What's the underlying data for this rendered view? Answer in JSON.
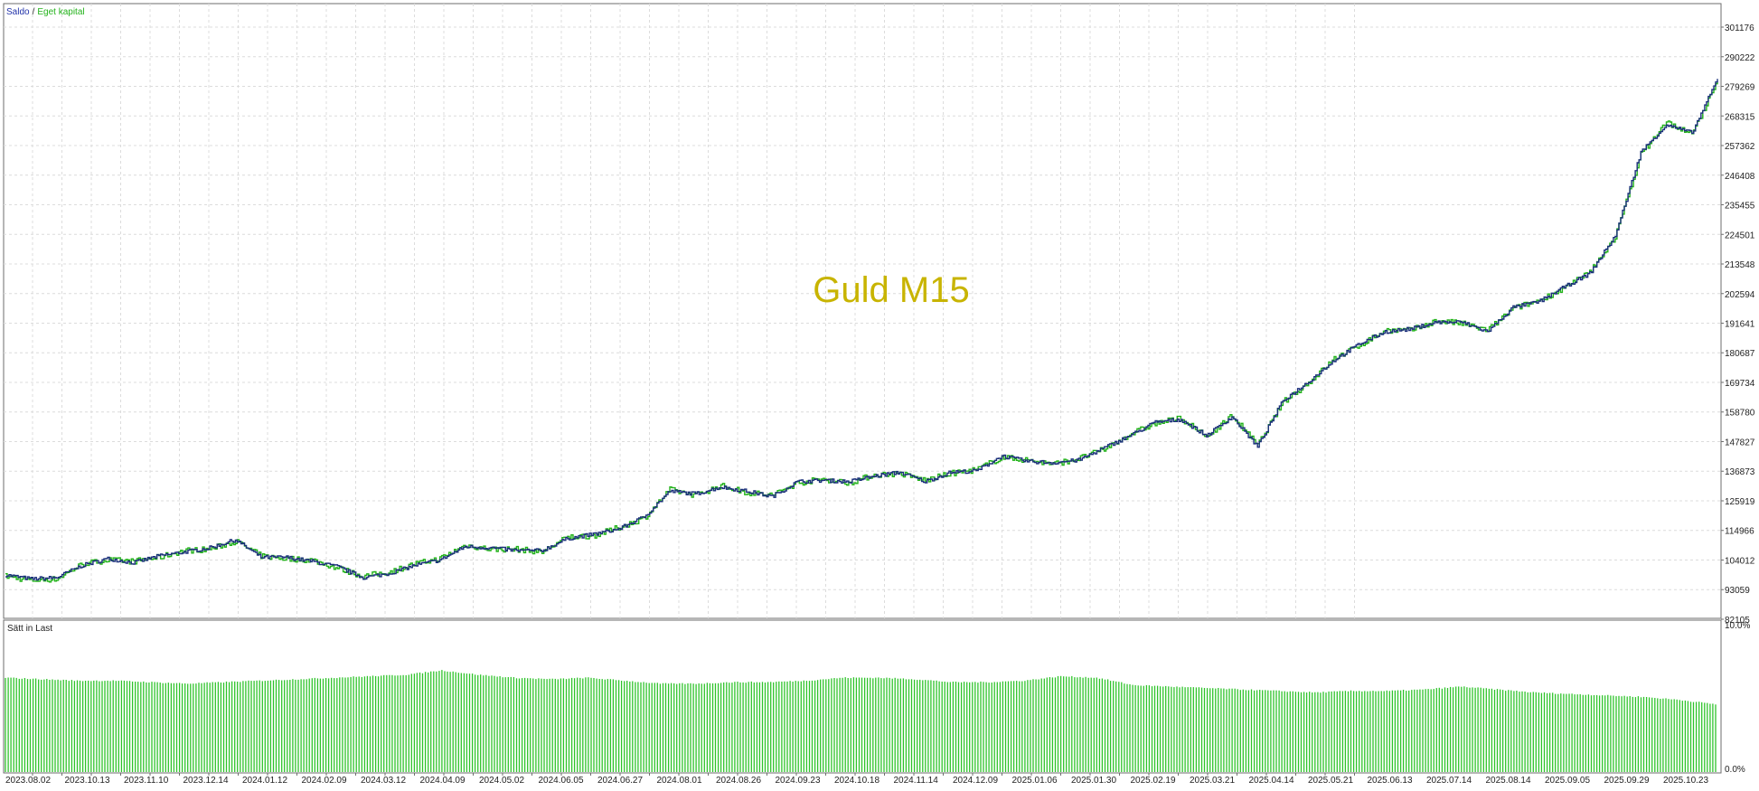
{
  "window": {
    "watermark": "Guld M15",
    "legend": {
      "balance_label": "Saldo",
      "separator": "/",
      "equity_label": "Eget kapital"
    },
    "subwindow_title": "Sätt in Last"
  },
  "colors": {
    "balance": "#1a2f7a",
    "equity": "#22b21a",
    "load_bars": "#2ec42a",
    "watermark": "#c8b400",
    "grid": "#dcdcdc",
    "frame": "#6e6e6e",
    "legend_balance": "#2233aa",
    "legend_equity": "#22b21a"
  },
  "chart_data": [
    {
      "type": "line",
      "series": [
        {
          "name": "Saldo",
          "role": "balance"
        },
        {
          "name": "Eget kapital",
          "role": "equity"
        }
      ],
      "y_ticks": [
        "301176",
        "290222",
        "279269",
        "268315",
        "257362",
        "246408",
        "235455",
        "224501",
        "213548",
        "202594",
        "191641",
        "180687",
        "169734",
        "158780",
        "147827",
        "136873",
        "125919",
        "114966",
        "104012",
        "93059",
        "82105"
      ],
      "ylim": [
        82105,
        301176
      ],
      "x_labels": [
        "2023.08.02",
        "2023.10.13",
        "2023.11.10",
        "2023.12.14",
        "2024.01.12",
        "2024.02.09",
        "2024.03.12",
        "2024.04.09",
        "2024.05.02",
        "2024.06.05",
        "2024.06.27",
        "2024.08.01",
        "2024.08.26",
        "2024.09.23",
        "2024.10.18",
        "2024.11.14",
        "2024.12.09",
        "2025.01.06",
        "2025.01.30",
        "2025.02.19",
        "2025.03.21",
        "2025.04.14",
        "2025.05.21",
        "2025.06.13",
        "2025.07.14",
        "2025.08.14",
        "2025.09.05",
        "2025.09.29",
        "2025.10.23"
      ],
      "balance_values": [
        98500,
        97000,
        97500,
        102000,
        104500,
        103000,
        105500,
        107000,
        108500,
        111500,
        105000,
        105000,
        103500,
        101500,
        97500,
        99000,
        102000,
        104000,
        109000,
        108500,
        107500,
        107500,
        112000,
        113500,
        115500,
        120000,
        129500,
        128500,
        131000,
        129500,
        127500,
        133000,
        133500,
        133000,
        135000,
        136500,
        133000,
        136500,
        137000,
        142500,
        140500,
        140000,
        141000,
        145500,
        150000,
        155000,
        156000,
        150000,
        157000,
        146000,
        163000,
        170000,
        178000,
        184000,
        188500,
        189500,
        192000,
        192000,
        188500,
        197500,
        199500,
        205000,
        210000,
        224000,
        255000,
        265000,
        262000,
        282000
      ],
      "equity_values": [
        98000,
        96500,
        97000,
        102500,
        104000,
        103500,
        105000,
        107500,
        108000,
        111000,
        105500,
        104500,
        104000,
        101000,
        98000,
        99500,
        102500,
        104500,
        109500,
        108000,
        108000,
        107000,
        112500,
        113000,
        116000,
        119500,
        130000,
        128000,
        131500,
        129000,
        128000,
        132500,
        134000,
        132500,
        135500,
        136000,
        133500,
        136000,
        137500,
        142000,
        141000,
        139500,
        141500,
        145000,
        150500,
        154500,
        156500,
        149500,
        157500,
        146500,
        162500,
        169500,
        178500,
        183500,
        189000,
        189000,
        192500,
        191500,
        189000,
        197000,
        200000,
        204500,
        210500,
        223500,
        254000,
        266000,
        261500,
        281000
      ]
    },
    {
      "type": "bar",
      "series": [
        {
          "name": "Sätt in Last"
        }
      ],
      "ylim": [
        0,
        10
      ],
      "y_ticks": [
        "10.0%",
        "0.0%"
      ],
      "values": [
        6.4,
        6.3,
        6.2,
        6.2,
        6.1,
        6.0,
        6.1,
        6.2,
        6.3,
        6.4,
        6.5,
        6.6,
        6.9,
        6.6,
        6.4,
        6.3,
        6.4,
        6.2,
        6.0,
        6.0,
        6.1,
        6.1,
        6.2,
        6.4,
        6.4,
        6.3,
        6.1,
        6.1,
        6.2,
        6.5,
        6.4,
        5.9,
        5.8,
        5.7,
        5.6,
        5.5,
        5.4,
        5.5,
        5.5,
        5.6,
        5.8,
        5.6,
        5.4,
        5.3,
        5.2,
        5.1,
        4.9,
        4.6
      ]
    }
  ]
}
